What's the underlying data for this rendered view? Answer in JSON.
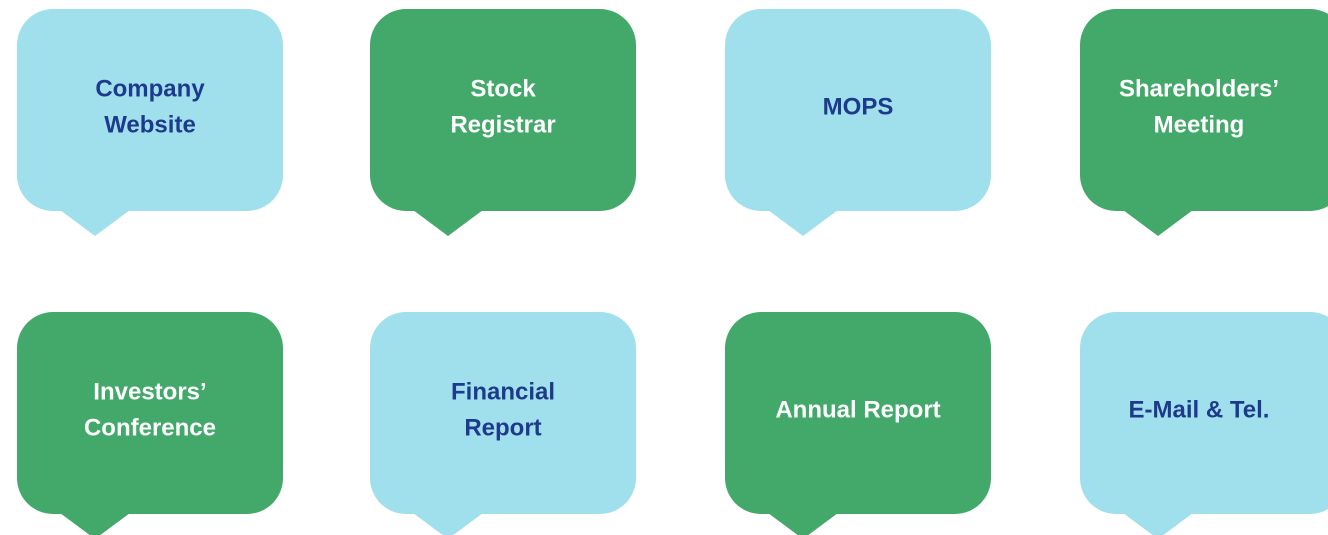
{
  "nodes": [
    {
      "lines": [
        "Company",
        "Website"
      ],
      "fill": "#a0e0ec",
      "text_color": "#1e3a8c"
    },
    {
      "lines": [
        "Stock",
        "Registrar"
      ],
      "fill": "#43a96a",
      "text_color": "#ffffff"
    },
    {
      "lines": [
        "MOPS"
      ],
      "fill": "#a0e0ec",
      "text_color": "#1e3a8c"
    },
    {
      "lines": [
        "Shareholders’",
        "Meeting"
      ],
      "fill": "#43a96a",
      "text_color": "#ffffff"
    },
    {
      "lines": [
        "Investors’",
        "Conference"
      ],
      "fill": "#43a96a",
      "text_color": "#ffffff"
    },
    {
      "lines": [
        "Financial",
        "Report"
      ],
      "fill": "#a0e0ec",
      "text_color": "#1e3a8c"
    },
    {
      "lines": [
        "Annual Report"
      ],
      "fill": "#43a96a",
      "text_color": "#ffffff"
    },
    {
      "lines": [
        "E-Mail & Tel."
      ],
      "fill": "#a0e0ec",
      "text_color": "#1e3a8c"
    }
  ]
}
